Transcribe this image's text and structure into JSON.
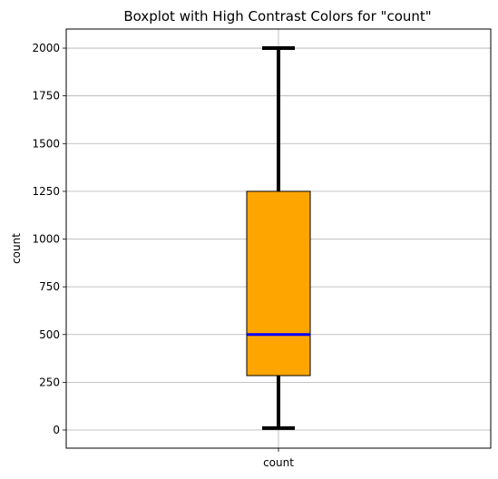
{
  "chart_data": {
    "type": "box",
    "title": "Boxplot with High Contrast Colors for \"count\"",
    "xlabel": "",
    "ylabel": "count",
    "categories": [
      "count"
    ],
    "boxes": [
      {
        "name": "count",
        "whisker_low": 10,
        "q1": 285,
        "median": 500,
        "q3": 1250,
        "whisker_high": 2000
      }
    ],
    "ylim": [
      -95,
      2100
    ],
    "yticks": [
      0,
      250,
      500,
      750,
      1000,
      1250,
      1500,
      1750,
      2000
    ],
    "grid": true,
    "colors": {
      "box_fill": "#ffa500",
      "box_edge": "#000000",
      "median": "#0000ff",
      "whisker": "#000000",
      "grid": "#b0b0b0"
    }
  }
}
